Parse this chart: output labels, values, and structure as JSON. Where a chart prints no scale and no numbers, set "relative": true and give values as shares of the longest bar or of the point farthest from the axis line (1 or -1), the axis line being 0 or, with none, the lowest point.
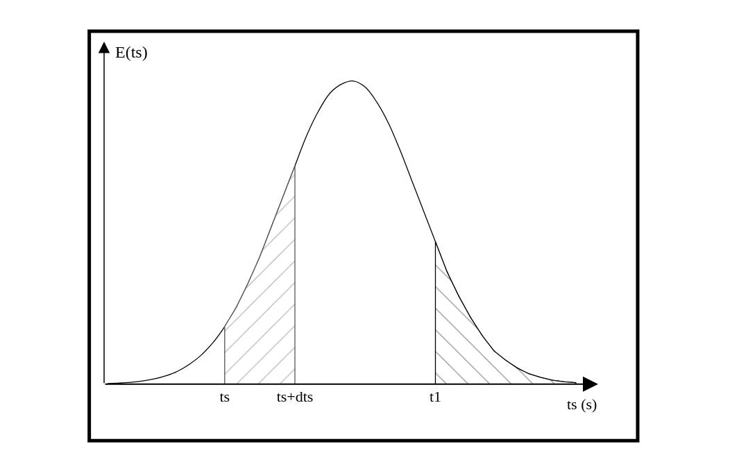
{
  "chart_data": {
    "type": "line",
    "relative": true,
    "ylabel": "E(ts)",
    "xlabel": "ts (s)",
    "categories": [
      null,
      null,
      null,
      null,
      null,
      null,
      null,
      null,
      null,
      null,
      "ts",
      null,
      null,
      null,
      null,
      null,
      "ts+dts",
      null,
      null,
      null,
      null,
      null,
      null,
      null,
      null,
      null,
      null,
      null,
      "t1",
      null,
      null,
      null,
      null,
      null,
      null,
      null,
      null,
      null,
      null,
      null,
      null
    ],
    "series": [
      {
        "color": "#000000",
        "values": [
          0.002,
          0.0036,
          0.0063,
          0.0107,
          0.0176,
          0.028,
          0.043,
          0.066,
          0.096,
          0.137,
          0.19,
          0.254,
          0.333,
          0.42,
          0.52,
          0.62,
          0.72,
          0.82,
          0.9,
          0.96,
          0.99,
          1,
          0.98,
          0.93,
          0.86,
          0.77,
          0.67,
          0.57,
          0.47,
          0.37,
          0.29,
          0.22,
          0.16,
          0.11,
          0.079,
          0.053,
          0.034,
          0.022,
          0.013,
          0.008,
          0.005
        ]
      },
      {
        "type": "area",
        "color": "#555555",
        "values": [
          null,
          null,
          null,
          null,
          null,
          null,
          null,
          null,
          null,
          null,
          0.19,
          0.254,
          0.333,
          0.42,
          0.52,
          0.62,
          0.72,
          null,
          null,
          null,
          null,
          null,
          null,
          null,
          null,
          null,
          null,
          null,
          null,
          null,
          null,
          null,
          null,
          null,
          null,
          null,
          null,
          null,
          null,
          null,
          null
        ]
      },
      {
        "type": "area",
        "color": "#000000",
        "values": [
          null,
          null,
          null,
          null,
          null,
          null,
          null,
          null,
          null,
          null,
          null,
          null,
          null,
          null,
          null,
          null,
          null,
          null,
          null,
          null,
          null,
          null,
          null,
          null,
          null,
          null,
          null,
          null,
          0.47,
          0.37,
          0.29,
          0.22,
          0.16,
          0.11,
          0.079,
          0.053,
          0.034,
          0.022,
          0.013,
          0.008,
          0.005
        ]
      }
    ]
  }
}
